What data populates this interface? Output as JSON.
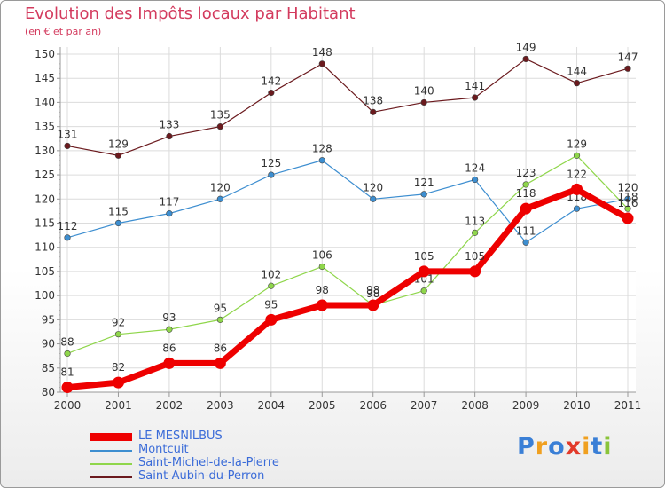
{
  "chart_data": {
    "type": "line",
    "title": "Evolution des Impôts locaux par Habitant",
    "subtitle": "(en € et par an)",
    "xlabel": "",
    "ylabel": "",
    "x": [
      "2000",
      "2001",
      "2002",
      "2003",
      "2004",
      "2005",
      "2006",
      "2007",
      "2008",
      "2009",
      "2010",
      "2011"
    ],
    "ylim": [
      80,
      150
    ],
    "yticks": [
      "80",
      "85",
      "90",
      "95",
      "100",
      "105",
      "110",
      "115",
      "120",
      "125",
      "130",
      "135",
      "140",
      "145",
      "150"
    ],
    "grid": true,
    "legend_position": "bottom-left",
    "series": [
      {
        "name": "Saint-Aubin-du-Perron",
        "color": "#6b1a1e",
        "values": [
          131,
          129,
          133,
          135,
          142,
          148,
          138,
          140,
          141,
          149,
          144,
          147
        ]
      },
      {
        "name": "Montcuit",
        "color": "#3d8ed0",
        "values": [
          112,
          115,
          117,
          120,
          125,
          128,
          120,
          121,
          124,
          111,
          118,
          120
        ]
      },
      {
        "name": "Saint-Michel-de-la-Pierre",
        "color": "#8fd64b",
        "values": [
          88,
          92,
          93,
          95,
          102,
          106,
          98,
          101,
          113,
          123,
          129,
          118
        ]
      },
      {
        "name": "LE MESNILBUS",
        "color": "#ee0000",
        "values": [
          81,
          82,
          86,
          86,
          95,
          98,
          98,
          105,
          105,
          118,
          122,
          116
        ]
      }
    ],
    "legend_order": [
      "LE MESNILBUS",
      "Montcuit",
      "Saint-Michel-de-la-Pierre",
      "Saint-Aubin-du-Perron"
    ]
  },
  "logo": {
    "letters": [
      "P",
      "r",
      "o",
      "x",
      "i",
      "t",
      "i"
    ],
    "colors": [
      "#3a7fd6",
      "#f0a020",
      "#3a7fd6",
      "#e23a2a",
      "#f0a020",
      "#3a7fd6",
      "#8ac43a"
    ]
  }
}
